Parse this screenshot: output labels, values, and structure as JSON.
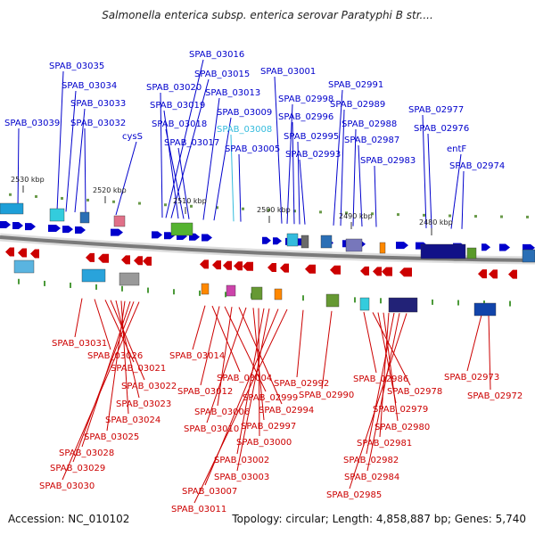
{
  "title": "Salmonella enterica subsp. enterica serovar Paratyphi B str....",
  "footer": {
    "accession": "Accession: NC_010102",
    "topology": "Topology: circular; Length: 4,858,887 bp; Genes: 5,740"
  },
  "colors": {
    "forward": "#0000cc",
    "reverse": "#cc0000",
    "highlight": "#33bbdd",
    "backbone": "#888888"
  },
  "kbp_markers": [
    "2530 kbp",
    "2520 kbp",
    "2510 kbp",
    "2500 kbp",
    "2490 kbp",
    "2480 kbp"
  ],
  "top_labels": [
    {
      "text": "SPAB_03035"
    },
    {
      "text": "SPAB_03034"
    },
    {
      "text": "SPAB_03033"
    },
    {
      "text": "SPAB_03032"
    },
    {
      "text": "SPAB_03039"
    },
    {
      "text": "cysS"
    },
    {
      "text": "SPAB_03016"
    },
    {
      "text": "SPAB_03015"
    },
    {
      "text": "SPAB_03020"
    },
    {
      "text": "SPAB_03013"
    },
    {
      "text": "SPAB_03019"
    },
    {
      "text": "SPAB_03009"
    },
    {
      "text": "SPAB_03018"
    },
    {
      "text": "SPAB_03008",
      "highlight": true
    },
    {
      "text": "SPAB_03017"
    },
    {
      "text": "SPAB_03005"
    },
    {
      "text": "SPAB_03001"
    },
    {
      "text": "SPAB_02998"
    },
    {
      "text": "SPAB_02996"
    },
    {
      "text": "SPAB_02995"
    },
    {
      "text": "SPAB_02993"
    },
    {
      "text": "SPAB_02991"
    },
    {
      "text": "SPAB_02989"
    },
    {
      "text": "SPAB_02988"
    },
    {
      "text": "SPAB_02987"
    },
    {
      "text": "SPAB_02983"
    },
    {
      "text": "SPAB_02977"
    },
    {
      "text": "SPAB_02976"
    },
    {
      "text": "entF"
    },
    {
      "text": "SPAB_02974"
    }
  ],
  "bottom_labels": [
    {
      "text": "SPAB_03031"
    },
    {
      "text": "SPAB_03026"
    },
    {
      "text": "SPAB_03021"
    },
    {
      "text": "SPAB_03022"
    },
    {
      "text": "SPAB_03023"
    },
    {
      "text": "SPAB_03024"
    },
    {
      "text": "SPAB_03025"
    },
    {
      "text": "SPAB_03028"
    },
    {
      "text": "SPAB_03029"
    },
    {
      "text": "SPAB_03030"
    },
    {
      "text": "SPAB_03014"
    },
    {
      "text": "SPAB_03004"
    },
    {
      "text": "SPAB_03012"
    },
    {
      "text": "SPAB_02999"
    },
    {
      "text": "SPAB_03006"
    },
    {
      "text": "SPAB_02994"
    },
    {
      "text": "SPAB_03010"
    },
    {
      "text": "SPAB_02997"
    },
    {
      "text": "SPAB_03000"
    },
    {
      "text": "SPAB_03002"
    },
    {
      "text": "SPAB_03003"
    },
    {
      "text": "SPAB_03007"
    },
    {
      "text": "SPAB_03011"
    },
    {
      "text": "SPAB_02992"
    },
    {
      "text": "SPAB_02990"
    },
    {
      "text": "SPAB_02986"
    },
    {
      "text": "SPAB_02978"
    },
    {
      "text": "SPAB_02979"
    },
    {
      "text": "SPAB_02980"
    },
    {
      "text": "SPAB_02981"
    },
    {
      "text": "SPAB_02982"
    },
    {
      "text": "SPAB_02984"
    },
    {
      "text": "SPAB_02985"
    },
    {
      "text": "SPAB_02973"
    },
    {
      "text": "SPAB_02972"
    }
  ]
}
